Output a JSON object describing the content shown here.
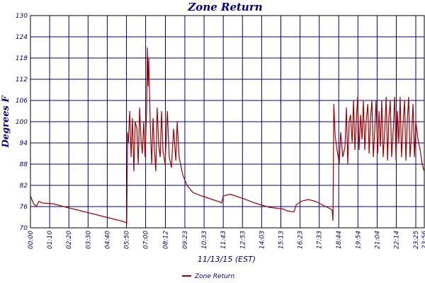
{
  "chart_data": {
    "type": "line",
    "title": "Zone Return",
    "y_label": "Degrees F",
    "x_label": "11/13/15 (EST)",
    "xlim": [
      0,
      1436
    ],
    "ylim": [
      70,
      130
    ],
    "yticks": [
      70,
      76,
      82,
      88,
      94,
      100,
      106,
      112,
      118,
      124,
      130
    ],
    "xticks": [
      {
        "value": 0,
        "label": "00:00"
      },
      {
        "value": 70,
        "label": "01:10"
      },
      {
        "value": 140,
        "label": "02:20"
      },
      {
        "value": 210,
        "label": "03:30"
      },
      {
        "value": 280,
        "label": "04:40"
      },
      {
        "value": 350,
        "label": "05:50"
      },
      {
        "value": 420,
        "label": "07:00"
      },
      {
        "value": 492,
        "label": "08:12"
      },
      {
        "value": 563,
        "label": "09:23"
      },
      {
        "value": 633,
        "label": "10:33"
      },
      {
        "value": 703,
        "label": "11:43"
      },
      {
        "value": 773,
        "label": "12:53"
      },
      {
        "value": 843,
        "label": "14:03"
      },
      {
        "value": 913,
        "label": "15:13"
      },
      {
        "value": 983,
        "label": "16:23"
      },
      {
        "value": 1053,
        "label": "17:33"
      },
      {
        "value": 1124,
        "label": "18:44"
      },
      {
        "value": 1194,
        "label": "19:54"
      },
      {
        "value": 1264,
        "label": "21:04"
      },
      {
        "value": 1334,
        "label": "22:14"
      },
      {
        "value": 1405,
        "label": "23:25"
      },
      {
        "value": 1436,
        "label": "23:56"
      }
    ],
    "grid": true,
    "legend": "bottom",
    "series": [
      {
        "name": "Zone Return",
        "color": "#a00000",
        "x": [
          0,
          10,
          21,
          31,
          44,
          83,
          121,
          173,
          225,
          276,
          328,
          349,
          351,
          354,
          357,
          362,
          367,
          372,
          377,
          382,
          388,
          393,
          398,
          403,
          408,
          413,
          418,
          424,
          426,
          429,
          431,
          437,
          442,
          447,
          452,
          457,
          462,
          468,
          473,
          478,
          483,
          491,
          499,
          506,
          514,
          522,
          530,
          535,
          542,
          555,
          571,
          592,
          625,
          664,
          690,
          697,
          703,
          728,
          767,
          819,
          870,
          922,
          935,
          961,
          969,
          987,
          1013,
          1038,
          1064,
          1090,
          1100,
          1103,
          1106,
          1111,
          1118,
          1126,
          1131,
          1139,
          1147,
          1152,
          1157,
          1162,
          1167,
          1173,
          1178,
          1183,
          1188,
          1193,
          1198,
          1204,
          1209,
          1214,
          1219,
          1224,
          1230,
          1235,
          1240,
          1245,
          1250,
          1255,
          1260,
          1266,
          1271,
          1276,
          1281,
          1286,
          1292,
          1297,
          1302,
          1307,
          1312,
          1317,
          1323,
          1328,
          1333,
          1338,
          1343,
          1348,
          1353,
          1359,
          1364,
          1369,
          1374,
          1379,
          1384,
          1390,
          1395,
          1400,
          1405,
          1413,
          1421,
          1428,
          1436
        ],
        "values": [
          79,
          77,
          76,
          77.5,
          77,
          76.8,
          76,
          75,
          74,
          73,
          72,
          71.5,
          71,
          97,
          94,
          103,
          90,
          101,
          86,
          100,
          98,
          88,
          104,
          95,
          91,
          100,
          90,
          105,
          121,
          110,
          118,
          99,
          88,
          101,
          92,
          86,
          104,
          93,
          90,
          103,
          92,
          88,
          103,
          90,
          87,
          98,
          89,
          100,
          90,
          85,
          82,
          80,
          79,
          78,
          77.3,
          77,
          79,
          79.5,
          78.5,
          77,
          75.8,
          75.3,
          74.8,
          74.5,
          76.5,
          77.5,
          78,
          77.5,
          76.5,
          75.5,
          75,
          72,
          105,
          96,
          92,
          88,
          97,
          90,
          93,
          104,
          88,
          100,
          102,
          94,
          106,
          92,
          100,
          107,
          92,
          102,
          95,
          106,
          92,
          100,
          105,
          91,
          101,
          106,
          90,
          97,
          106,
          91,
          103,
          93,
          106,
          90,
          98,
          107,
          89,
          101,
          106,
          90,
          98,
          107,
          89,
          103,
          94,
          107,
          90,
          100,
          106,
          89,
          100,
          107,
          90,
          97,
          105,
          90,
          100,
          95,
          92,
          88,
          86
        ]
      }
    ]
  }
}
